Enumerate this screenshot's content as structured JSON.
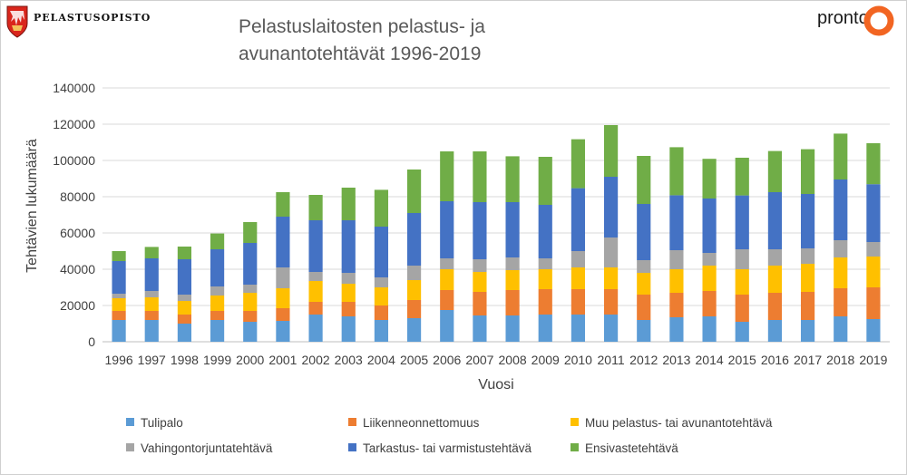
{
  "header": {
    "org_name": "Pelastusopisto",
    "partner_logo_text": "pronto"
  },
  "colors": {
    "tulipalo": "#5B9BD5",
    "liikenne": "#ED7D31",
    "muu": "#FFC000",
    "vahingontorjunta": "#A5A5A5",
    "tarkastus": "#4472C4",
    "ensivaste": "#70AD47",
    "pronto_orange": "#F26522"
  },
  "chart_data": {
    "type": "bar",
    "stacked": true,
    "title_lines": [
      "Pelastuslaitosten pelastus- ja",
      "avunantotehtävät 1996-2019"
    ],
    "xlabel": "Vuosi",
    "ylabel": "Tehtävien lukumäärä",
    "ylim": [
      0,
      140000
    ],
    "yticks": [
      0,
      20000,
      40000,
      60000,
      80000,
      100000,
      120000,
      140000
    ],
    "grid": true,
    "legend_position": "bottom",
    "categories": [
      "1996",
      "1997",
      "1998",
      "1999",
      "2000",
      "2001",
      "2002",
      "2003",
      "2004",
      "2005",
      "2006",
      "2007",
      "2008",
      "2009",
      "2010",
      "2011",
      "2012",
      "2013",
      "2014",
      "2015",
      "2016",
      "2017",
      "2018",
      "2019"
    ],
    "series": [
      {
        "name": "Tulipalo",
        "color_key": "tulipalo",
        "values": [
          12000,
          12000,
          10000,
          12000,
          11000,
          11500,
          15000,
          14000,
          12000,
          13000,
          17500,
          14500,
          14500,
          15000,
          15000,
          15000,
          12000,
          13500,
          14000,
          11000,
          12000,
          12000,
          14000,
          12500
        ]
      },
      {
        "name": "Liikenneonnettomuus",
        "color_key": "liikenne",
        "values": [
          5000,
          5000,
          5000,
          5000,
          6000,
          7000,
          7000,
          8000,
          8000,
          10000,
          11000,
          13000,
          14000,
          14000,
          14000,
          14000,
          14000,
          13500,
          14000,
          15000,
          15000,
          15500,
          15500,
          17500
        ]
      },
      {
        "name": "Muu pelastus- tai avunantotehtävä",
        "color_key": "muu",
        "values": [
          7000,
          7500,
          7500,
          8500,
          10000,
          11000,
          11500,
          10000,
          10000,
          11000,
          11500,
          11000,
          11000,
          11000,
          12000,
          12000,
          12000,
          13000,
          14000,
          14000,
          15000,
          15500,
          17000,
          17000
        ]
      },
      {
        "name": "Vahingontorjuntatehtävä",
        "color_key": "vahingontorjunta",
        "values": [
          2500,
          3500,
          3500,
          5000,
          4500,
          11500,
          5000,
          6000,
          5500,
          8000,
          6000,
          7000,
          7000,
          6000,
          9000,
          16500,
          7000,
          10500,
          7000,
          11000,
          9000,
          8500,
          9500,
          8000
        ]
      },
      {
        "name": "Tarkastus- tai varmistustehtävä",
        "color_key": "tarkastus",
        "values": [
          18000,
          18000,
          19500,
          20500,
          23000,
          28000,
          28500,
          29000,
          28000,
          29000,
          31500,
          31500,
          30500,
          29500,
          34700,
          33500,
          31000,
          30300,
          30000,
          29700,
          31500,
          30000,
          33500,
          31900
        ]
      },
      {
        "name": "Ensivastetehtävä",
        "color_key": "ensivaste",
        "values": [
          5500,
          6300,
          7000,
          8700,
          11500,
          13500,
          14000,
          18000,
          20300,
          24000,
          27500,
          28000,
          25300,
          26500,
          27000,
          28500,
          26500,
          26500,
          21900,
          20800,
          22700,
          24700,
          25300,
          22600
        ]
      }
    ]
  }
}
